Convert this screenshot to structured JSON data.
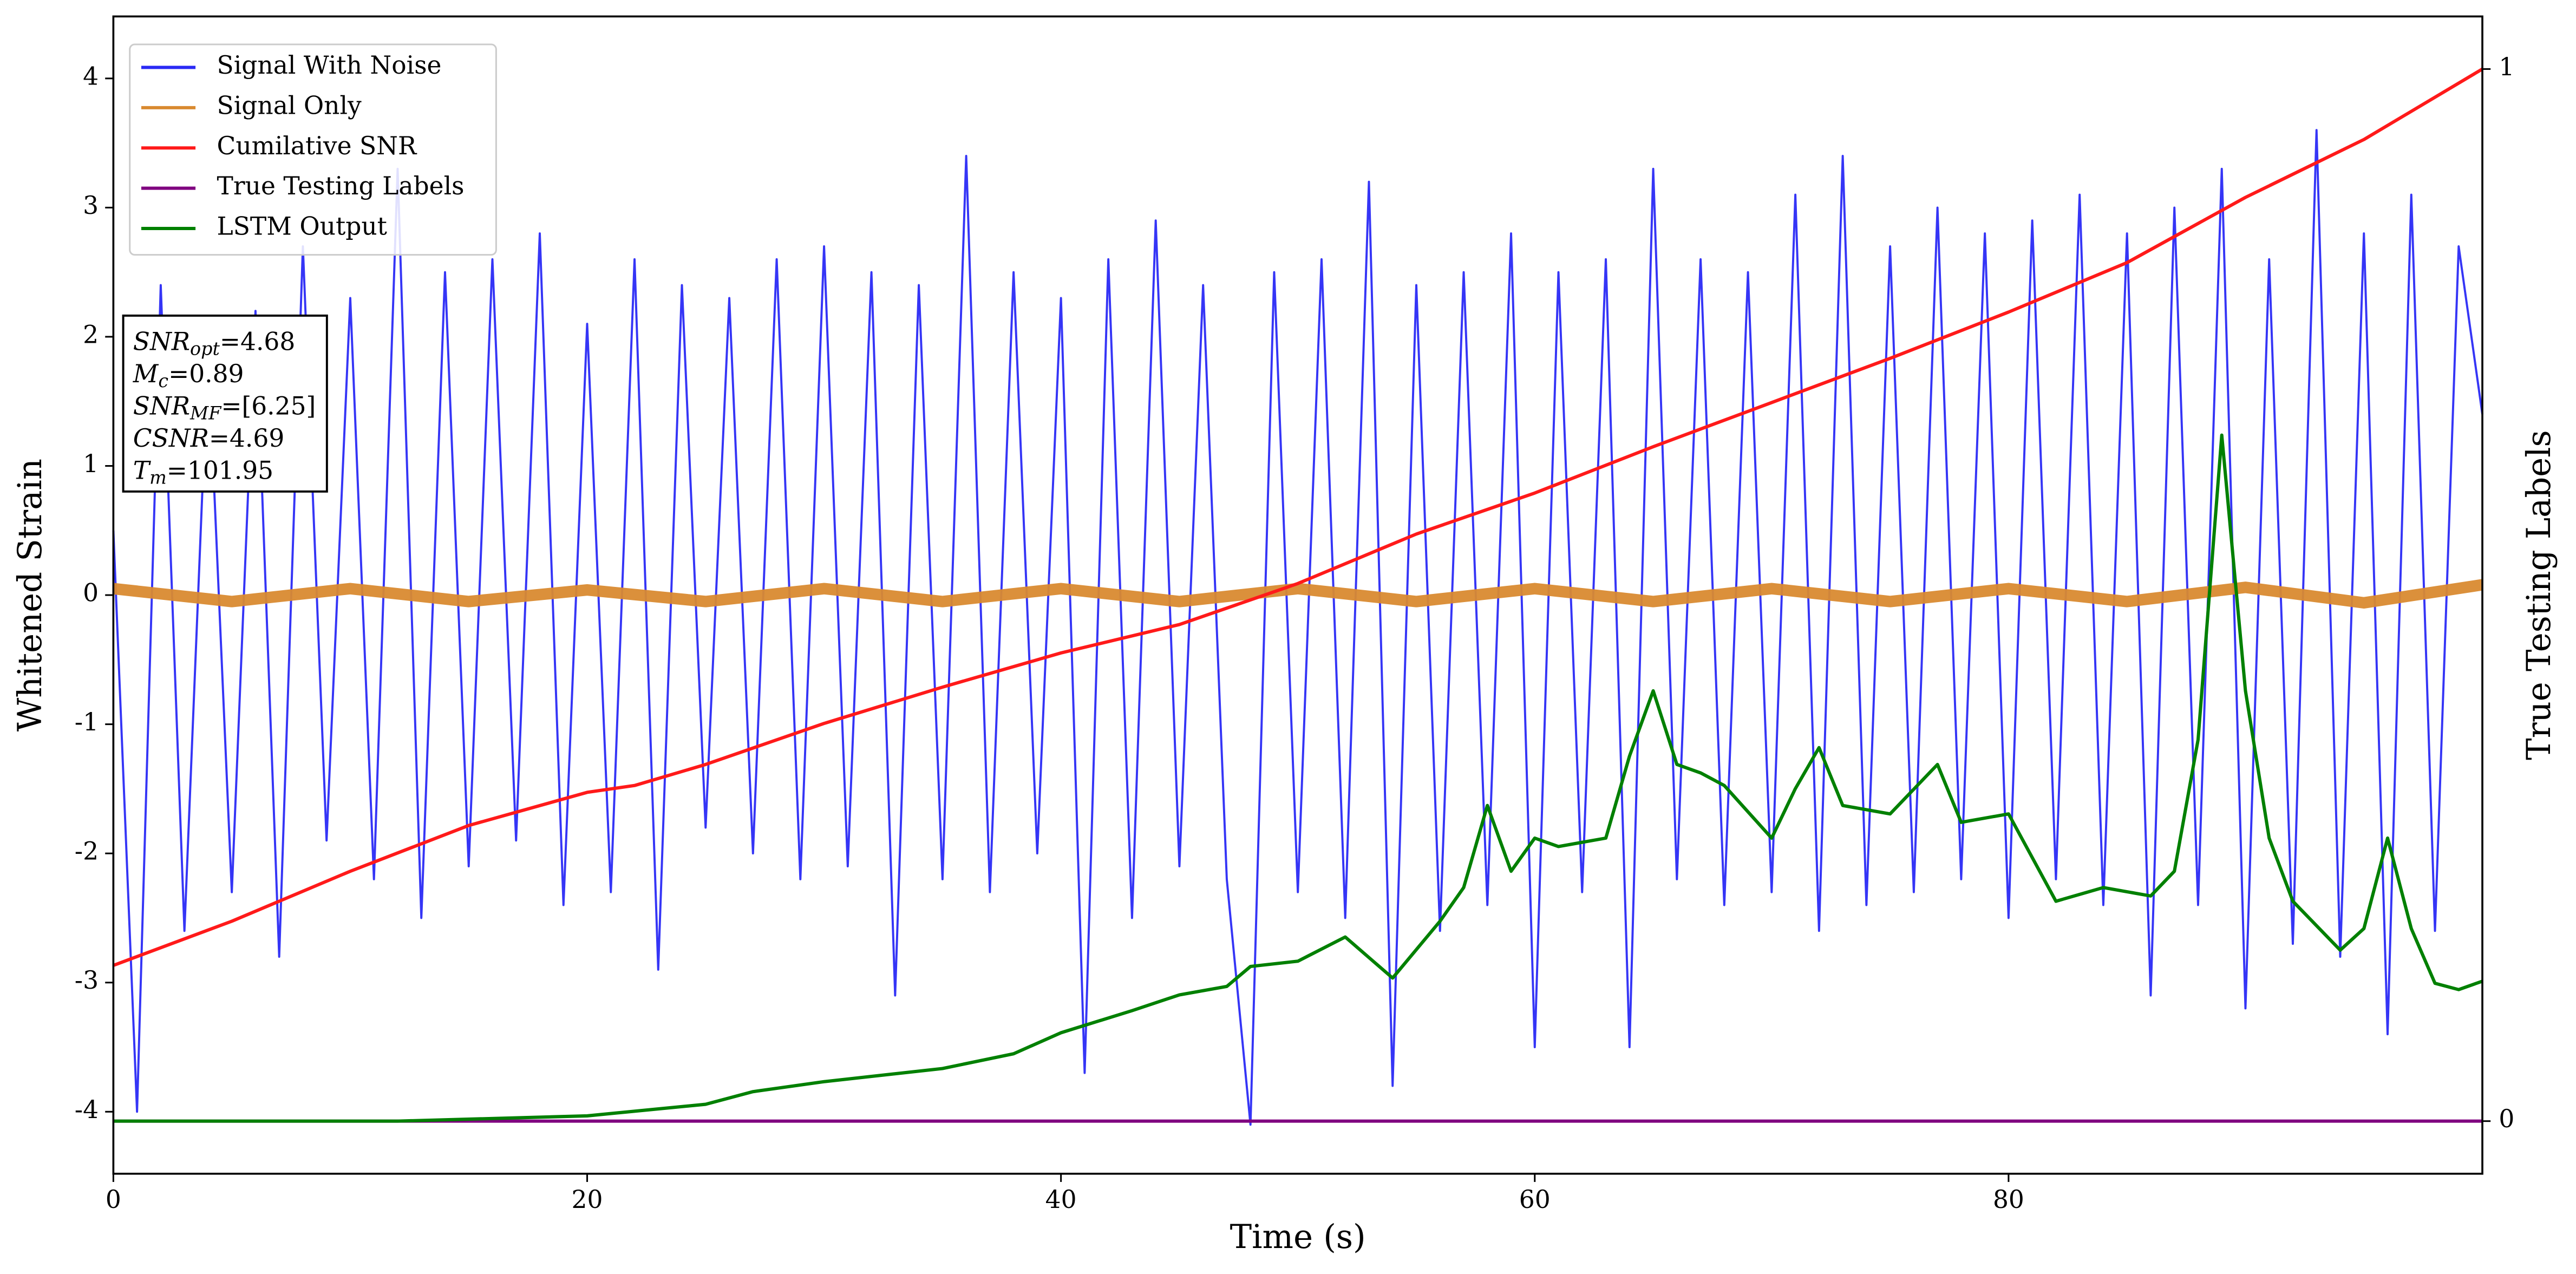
{
  "chart_data": {
    "type": "line",
    "xlabel": "Time (s)",
    "ylabel": "Whitened Strain",
    "y2label": "True Testing Labels",
    "xlim": [
      0,
      100
    ],
    "xticks": [
      0,
      20,
      40,
      60,
      80
    ],
    "ylim": [
      -4.48,
      4.48
    ],
    "yticks": [
      -4,
      -3,
      -2,
      -1,
      0,
      1,
      2,
      3,
      4
    ],
    "y2lim": [
      -0.05,
      1.05
    ],
    "y2ticks": [
      0,
      1
    ],
    "legend": "upper left",
    "series": [
      {
        "name": "Signal With Noise",
        "color": "#2a2af5",
        "x": [
          0,
          1,
          2,
          3,
          4,
          5,
          6,
          7,
          8,
          9,
          10,
          11,
          12,
          13,
          14,
          15,
          16,
          17,
          18,
          19,
          20,
          21,
          22,
          23,
          24,
          25,
          26,
          27,
          28,
          29,
          30,
          31,
          32,
          33,
          34,
          35,
          36,
          37,
          38,
          39,
          40,
          41,
          42,
          43,
          44,
          45,
          46,
          47,
          48,
          49,
          50,
          51,
          52,
          53,
          54,
          55,
          56,
          57,
          58,
          59,
          60,
          61,
          62,
          63,
          64,
          65,
          66,
          67,
          68,
          69,
          70,
          71,
          72,
          73,
          74,
          75,
          76,
          77,
          78,
          79,
          80,
          81,
          82,
          83,
          84,
          85,
          86,
          87,
          88,
          89,
          90,
          91,
          92,
          93,
          94,
          95,
          96,
          97,
          98,
          99,
          100
        ],
        "values": [
          0.5,
          -4.0,
          2.4,
          -2.6,
          1.9,
          -2.3,
          2.2,
          -2.8,
          2.7,
          -1.9,
          2.3,
          -2.2,
          3.3,
          -2.5,
          2.5,
          -2.1,
          2.6,
          -1.9,
          2.8,
          -2.4,
          2.1,
          -2.3,
          2.6,
          -2.9,
          2.4,
          -1.8,
          2.3,
          -2.0,
          2.6,
          -2.2,
          2.7,
          -2.1,
          2.5,
          -3.1,
          2.4,
          -2.2,
          3.4,
          -2.3,
          2.5,
          -2.0,
          2.3,
          -3.7,
          2.6,
          -2.5,
          2.9,
          -2.1,
          2.4,
          -2.2,
          -4.1,
          2.5,
          -2.3,
          2.6,
          -2.5,
          3.2,
          -3.8,
          2.4,
          -2.6,
          2.5,
          -2.4,
          2.8,
          -3.5,
          2.5,
          -2.3,
          2.6,
          -3.5,
          3.3,
          -2.2,
          2.6,
          -2.4,
          2.5,
          -2.3,
          3.1,
          -2.6,
          3.4,
          -2.4,
          2.7,
          -2.3,
          3.0,
          -2.2,
          2.8,
          -2.5,
          2.9,
          -2.2,
          3.1,
          -2.4,
          2.8,
          -3.1,
          3.0,
          -2.4,
          3.3,
          -3.2,
          2.6,
          -2.7,
          3.6,
          -2.8,
          2.8,
          -3.4,
          3.1,
          -2.6,
          2.7,
          1.4
        ]
      },
      {
        "name": "Signal Only",
        "color": "#d98a30",
        "x": [
          0,
          5,
          10,
          15,
          20,
          25,
          30,
          35,
          40,
          45,
          50,
          55,
          60,
          65,
          70,
          75,
          80,
          85,
          90,
          95,
          100
        ],
        "values": [
          0.05,
          -0.05,
          0.05,
          -0.05,
          0.04,
          -0.05,
          0.05,
          -0.05,
          0.05,
          -0.05,
          0.05,
          -0.05,
          0.05,
          -0.05,
          0.05,
          -0.05,
          0.05,
          -0.05,
          0.06,
          -0.06,
          0.08
        ]
      },
      {
        "name": "Cumilative SNR",
        "color": "#ff1a1a",
        "axis": "y2",
        "x": [
          0,
          5,
          10,
          15,
          20,
          22,
          25,
          30,
          35,
          40,
          45,
          50,
          55,
          60,
          65,
          70,
          75,
          80,
          85,
          90,
          95,
          100
        ],
        "values": [
          0.148,
          0.19,
          0.2375,
          0.281,
          0.3125,
          0.319,
          0.339,
          0.378,
          0.4125,
          0.445,
          0.472,
          0.511,
          0.558,
          0.597,
          0.641,
          0.683,
          0.725,
          0.769,
          0.816,
          0.878,
          0.933,
          1.0
        ]
      },
      {
        "name": "True Testing Labels",
        "color": "#800080",
        "axis": "y2",
        "x": [
          0,
          100
        ],
        "values": [
          0,
          0
        ]
      },
      {
        "name": "LSTM Output",
        "color": "#008000",
        "axis": "y2",
        "x": [
          0,
          12,
          20,
          25,
          27,
          30,
          35,
          38,
          40,
          43,
          45,
          47,
          48,
          50,
          52,
          54,
          56,
          57,
          58,
          59,
          60,
          61,
          63,
          64,
          65,
          66,
          67,
          68,
          70,
          71,
          72,
          73,
          75,
          77,
          78,
          80,
          82,
          84,
          86,
          87,
          88,
          89,
          90,
          91,
          92,
          94,
          95,
          96,
          97,
          98,
          99,
          100
        ],
        "values": [
          0,
          0,
          0.005,
          0.016,
          0.028,
          0.0375,
          0.05,
          0.064,
          0.084,
          0.105,
          0.12,
          0.128,
          0.147,
          0.152,
          0.175,
          0.136,
          0.19,
          0.222,
          0.3,
          0.2375,
          0.269,
          0.261,
          0.269,
          0.347,
          0.409,
          0.339,
          0.331,
          0.319,
          0.269,
          0.316,
          0.355,
          0.3,
          0.292,
          0.339,
          0.284,
          0.292,
          0.209,
          0.222,
          0.214,
          0.2375,
          0.3625,
          0.652,
          0.409,
          0.269,
          0.209,
          0.1625,
          0.183,
          0.269,
          0.183,
          0.131,
          0.125,
          0.133
        ]
      }
    ],
    "annotation": [
      {
        "main": "SNR",
        "sub": "opt",
        "value": "=4.68"
      },
      {
        "main": "M",
        "sub": "c",
        "value": "=0.89"
      },
      {
        "main": "SNR",
        "sub": "MF",
        "value": "=[6.25]"
      },
      {
        "main": "CSNR",
        "value": "=4.69"
      },
      {
        "main": "T",
        "sub": "m",
        "value": "=101.95"
      }
    ]
  }
}
